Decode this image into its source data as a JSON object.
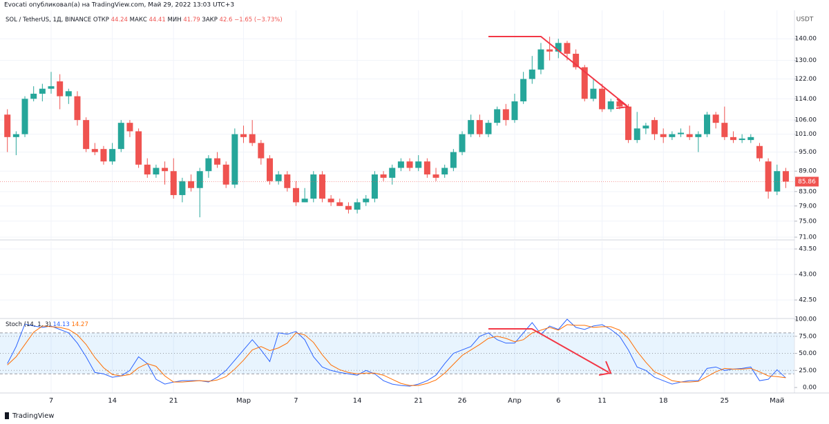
{
  "chart_data": [
    {
      "type": "candlestick",
      "caption": "Evocati опубликовал(а) на TradingView.com, Май 29, 2022 13:03 UTC+3",
      "title": "SOL / TetherUS, 1Д, BINANCE",
      "ohlc": [
        {
          "label": "ОТКР",
          "value": 44.24
        },
        {
          "label": "МАКС",
          "value": 44.41
        },
        {
          "label": "МИН",
          "value": 41.79
        },
        {
          "label": "ЗАКР",
          "value": 42.6
        }
      ],
      "change": "−1.65 (−3.73%)",
      "unit": "USDT",
      "watermark": "TradingView",
      "log_scale": true,
      "grid": true,
      "up_color": "#26a69a",
      "down_color": "#ef5350",
      "ylim": [
        70.5,
        154.3
      ],
      "yticks": [
        {
          "value": 140,
          "label": "140.00"
        },
        {
          "value": 130,
          "label": "130.00"
        },
        {
          "value": 122,
          "label": "122.00"
        },
        {
          "value": 114,
          "label": "114.00"
        },
        {
          "value": 106,
          "label": "106.00"
        },
        {
          "value": 101,
          "label": "101.00"
        },
        {
          "value": 95,
          "label": "95.00"
        },
        {
          "value": 89,
          "label": "89.00"
        },
        {
          "value": 83,
          "label": "83.00"
        },
        {
          "value": 79,
          "label": "79.00"
        },
        {
          "value": 75,
          "label": "75.00"
        },
        {
          "value": 71,
          "label": "71.00"
        }
      ],
      "categories": [
        null,
        null,
        null,
        null,
        null,
        "7",
        null,
        null,
        null,
        null,
        null,
        null,
        "14",
        null,
        null,
        null,
        null,
        null,
        null,
        "21",
        null,
        null,
        null,
        null,
        null,
        null,
        null,
        "Мар",
        null,
        null,
        null,
        null,
        null,
        "7",
        null,
        null,
        null,
        null,
        null,
        null,
        "14",
        null,
        null,
        null,
        null,
        null,
        null,
        "21",
        null,
        null,
        null,
        null,
        "26",
        null,
        null,
        null,
        null,
        null,
        "Апр",
        null,
        null,
        null,
        null,
        "6",
        null,
        null,
        null,
        null,
        "11",
        null,
        null,
        null,
        null,
        null,
        null,
        "18",
        null,
        null,
        null,
        null,
        null,
        null,
        "25",
        null,
        null,
        null,
        null,
        null,
        "Май",
        null
      ],
      "open": [
        108,
        100,
        101,
        114,
        116,
        118,
        121,
        115,
        115,
        106,
        96,
        96,
        92,
        96,
        105,
        102,
        91,
        88,
        90,
        89,
        82,
        86,
        84,
        89,
        93,
        91,
        85,
        101,
        101,
        98,
        93,
        86,
        88,
        84,
        80,
        81,
        88,
        81,
        80,
        79,
        78,
        80,
        81,
        88,
        87,
        90,
        92,
        90,
        92,
        88,
        88,
        90,
        95,
        101,
        106,
        101,
        105,
        110,
        106,
        113,
        122,
        126,
        135,
        134,
        138,
        133,
        127,
        114,
        118,
        110,
        113,
        111,
        99,
        103,
        106,
        101,
        100,
        101,
        101,
        100,
        101,
        108,
        105,
        100,
        99,
        99,
        97,
        92,
        83,
        89
      ],
      "close": [
        100,
        101,
        114,
        116,
        118,
        119,
        115,
        117,
        106,
        96,
        95,
        92,
        96,
        105,
        102,
        91,
        88,
        90,
        89,
        82,
        86,
        84,
        89,
        93,
        91,
        85,
        101,
        100,
        98,
        93,
        86,
        88,
        84,
        80,
        81,
        88,
        81,
        80,
        79,
        78,
        80,
        81,
        88,
        87,
        90,
        92,
        90,
        92,
        88,
        87,
        90,
        95,
        101,
        106,
        101,
        105,
        110,
        106,
        113,
        122,
        126,
        135,
        134,
        138,
        133,
        127,
        114,
        118,
        110,
        113,
        111,
        99,
        103,
        104,
        101,
        100,
        101,
        101.5,
        100,
        101,
        108,
        105,
        100,
        99,
        99.5,
        100,
        93,
        83,
        89,
        85.86
      ],
      "high": [
        110,
        102,
        115,
        119,
        120,
        125,
        124,
        118,
        117,
        107,
        98,
        97,
        98,
        106,
        106,
        103,
        93,
        91,
        92,
        93,
        87,
        88,
        90,
        94,
        95,
        92,
        103,
        104,
        106,
        99,
        94,
        89,
        89,
        86,
        84,
        89,
        89,
        82,
        81,
        80,
        81,
        82,
        89,
        89,
        91,
        93,
        93,
        94,
        93,
        90,
        91,
        96,
        102,
        108,
        108,
        106,
        111,
        112,
        116,
        125,
        132,
        138,
        141,
        140,
        139,
        135,
        128,
        122,
        120,
        114,
        114,
        112,
        109,
        105,
        107,
        103,
        102,
        103,
        104,
        102,
        109,
        109,
        111,
        102,
        101,
        101,
        98,
        93,
        91,
        90
      ],
      "low": [
        95,
        94,
        100,
        113,
        113,
        116,
        110,
        112,
        104,
        95,
        94,
        91,
        91,
        95,
        100,
        90,
        87,
        87,
        85,
        81,
        80,
        83,
        76,
        87,
        90,
        84,
        84,
        98,
        97,
        91,
        85,
        85,
        83,
        79,
        80,
        80,
        80,
        79,
        79,
        77,
        77,
        79,
        80,
        86,
        85,
        89,
        89,
        89,
        87,
        86,
        87,
        89,
        94,
        100,
        100,
        100,
        104,
        104,
        105,
        112,
        120,
        124,
        130,
        131,
        130,
        126,
        113,
        113,
        109,
        109,
        110,
        98,
        98,
        101,
        99,
        98,
        99,
        100,
        99,
        95,
        100,
        103,
        99,
        98,
        98,
        98,
        92,
        81,
        82,
        84
      ],
      "last_label": "85.86"
    },
    {
      "type": "line",
      "ylim": [
        42.15,
        43.65
      ],
      "yticks": [
        {
          "value": 43.5,
          "label": "43.50"
        },
        {
          "value": 43.0,
          "label": "43.00"
        },
        {
          "value": 42.5,
          "label": "42.50"
        }
      ],
      "series": []
    },
    {
      "type": "line",
      "title": "Stoch (14, 1, 3)",
      "ylim": [
        -7,
        100
      ],
      "yticks": [
        {
          "value": 100,
          "label": "100.00"
        },
        {
          "value": 75,
          "label": "75.00"
        },
        {
          "value": 50,
          "label": "50.00"
        },
        {
          "value": 25,
          "label": "25.00"
        },
        {
          "value": 0,
          "label": "0.00"
        }
      ],
      "bands": [
        20,
        80
      ],
      "band_color": "#2196f3",
      "series": [
        {
          "name": "%K",
          "color": "#2962ff",
          "values": [
            35,
            60,
            93,
            90,
            88,
            90,
            85,
            80,
            65,
            45,
            22,
            20,
            15,
            17,
            25,
            45,
            35,
            12,
            5,
            8,
            10,
            10,
            10,
            8,
            15,
            25,
            40,
            55,
            70,
            55,
            38,
            80,
            78,
            82,
            70,
            45,
            30,
            25,
            22,
            20,
            18,
            25,
            20,
            10,
            5,
            3,
            2,
            5,
            10,
            18,
            35,
            50,
            55,
            60,
            75,
            80,
            70,
            65,
            65,
            80,
            95,
            78,
            90,
            85,
            100,
            88,
            85,
            90,
            92,
            85,
            75,
            55,
            30,
            25,
            15,
            10,
            5,
            8,
            10,
            10,
            28,
            30,
            25,
            27,
            28,
            30,
            10,
            12,
            26,
            14.13
          ]
        },
        {
          "name": "%D",
          "color": "#ff6d00",
          "values": [
            33,
            45,
            63,
            81,
            90,
            89,
            88,
            85,
            77,
            63,
            44,
            29,
            19,
            17,
            19,
            29,
            35,
            31,
            17,
            8,
            8,
            9,
            10,
            9,
            11,
            16,
            27,
            40,
            55,
            60,
            54,
            58,
            65,
            80,
            77,
            66,
            48,
            33,
            26,
            22,
            20,
            21,
            21,
            18,
            12,
            6,
            3,
            3,
            6,
            11,
            21,
            34,
            47,
            55,
            63,
            72,
            75,
            72,
            67,
            70,
            80,
            84,
            88,
            84,
            92,
            91,
            91,
            88,
            89,
            89,
            84,
            72,
            53,
            37,
            23,
            17,
            10,
            8,
            8,
            9,
            16,
            23,
            28,
            27,
            27,
            28,
            23,
            17,
            16,
            14.27
          ]
        }
      ]
    }
  ]
}
